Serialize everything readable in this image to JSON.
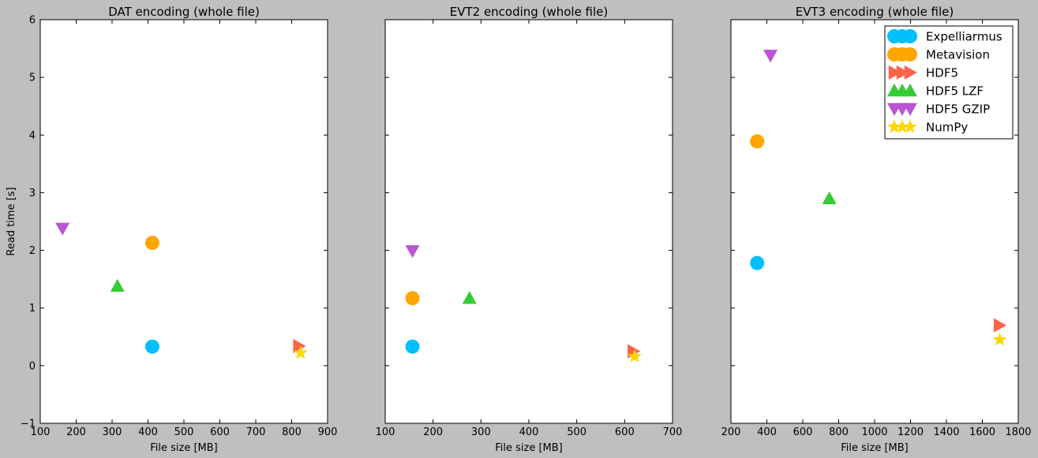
{
  "colors": {
    "figure_background": "#bfbfbf",
    "Expelliarmus": "#00bfff",
    "Metavision": "#ffa500",
    "HDF5": "#ff6347",
    "HDF5 LZF": "#32cd32",
    "HDF5 GZIP": "#ba55d3",
    "NumPy": "#ffd700"
  },
  "chart_data": [
    {
      "type": "scatter",
      "title": "DAT encoding (whole file)",
      "xlabel": "File size [MB]",
      "ylabel": "Read time [s]",
      "xlim": [
        100,
        900
      ],
      "ylim": [
        -1,
        6
      ],
      "xticks": [
        100,
        200,
        300,
        400,
        500,
        600,
        700,
        800,
        900
      ],
      "yticks": [
        -1,
        0,
        1,
        2,
        3,
        4,
        5,
        6
      ],
      "grid": false,
      "series": [
        {
          "name": "Expelliarmus",
          "marker": "circle",
          "points": [
            [
              412,
              0.33
            ]
          ]
        },
        {
          "name": "Metavision",
          "marker": "circle",
          "points": [
            [
              412,
              2.13
            ]
          ]
        },
        {
          "name": "HDF5",
          "marker": "triangle-right",
          "points": [
            [
              820,
              0.34
            ]
          ]
        },
        {
          "name": "HDF5 LZF",
          "marker": "triangle-up",
          "points": [
            [
              315,
              1.38
            ]
          ]
        },
        {
          "name": "HDF5 GZIP",
          "marker": "triangle-down",
          "points": [
            [
              162,
              2.38
            ]
          ]
        },
        {
          "name": "NumPy",
          "marker": "star",
          "points": [
            [
              825,
              0.22
            ]
          ]
        }
      ]
    },
    {
      "type": "scatter",
      "title": "EVT2 encoding (whole file)",
      "xlabel": "File size [MB]",
      "ylabel": "",
      "xlim": [
        100,
        700
      ],
      "ylim": [
        -1,
        6
      ],
      "xticks": [
        100,
        200,
        300,
        400,
        500,
        600,
        700
      ],
      "yticks": [],
      "grid": false,
      "series": [
        {
          "name": "Expelliarmus",
          "marker": "circle",
          "points": [
            [
              157,
              0.33
            ]
          ]
        },
        {
          "name": "Metavision",
          "marker": "circle",
          "points": [
            [
              157,
              1.17
            ]
          ]
        },
        {
          "name": "HDF5",
          "marker": "triangle-right",
          "points": [
            [
              618,
              0.25
            ]
          ]
        },
        {
          "name": "HDF5 LZF",
          "marker": "triangle-up",
          "points": [
            [
              276,
              1.17
            ]
          ]
        },
        {
          "name": "HDF5 GZIP",
          "marker": "triangle-down",
          "points": [
            [
              157,
              1.99
            ]
          ]
        },
        {
          "name": "NumPy",
          "marker": "star",
          "points": [
            [
              621,
              0.16
            ]
          ]
        }
      ]
    },
    {
      "type": "scatter",
      "title": "EVT3 encoding (whole file)",
      "xlabel": "File size [MB]",
      "ylabel": "",
      "xlim": [
        200,
        1800
      ],
      "ylim": [
        -1,
        6
      ],
      "xticks": [
        200,
        400,
        600,
        800,
        1000,
        1200,
        1400,
        1600,
        1800
      ],
      "yticks": [],
      "grid": false,
      "legend": {
        "placement": "top-right",
        "entries": [
          "Expelliarmus",
          "Metavision",
          "HDF5",
          "HDF5 LZF",
          "HDF5 GZIP",
          "NumPy"
        ]
      },
      "series": [
        {
          "name": "Expelliarmus",
          "marker": "circle",
          "points": [
            [
              346,
              1.78
            ]
          ]
        },
        {
          "name": "Metavision",
          "marker": "circle",
          "points": [
            [
              346,
              3.89
            ]
          ]
        },
        {
          "name": "HDF5",
          "marker": "triangle-right",
          "points": [
            [
              1695,
              0.7
            ]
          ]
        },
        {
          "name": "HDF5 LZF",
          "marker": "triangle-up",
          "points": [
            [
              748,
              2.9
            ]
          ]
        },
        {
          "name": "HDF5 GZIP",
          "marker": "triangle-down",
          "points": [
            [
              420,
              5.38
            ]
          ]
        },
        {
          "name": "NumPy",
          "marker": "star",
          "points": [
            [
              1697,
              0.45
            ]
          ]
        }
      ]
    }
  ]
}
